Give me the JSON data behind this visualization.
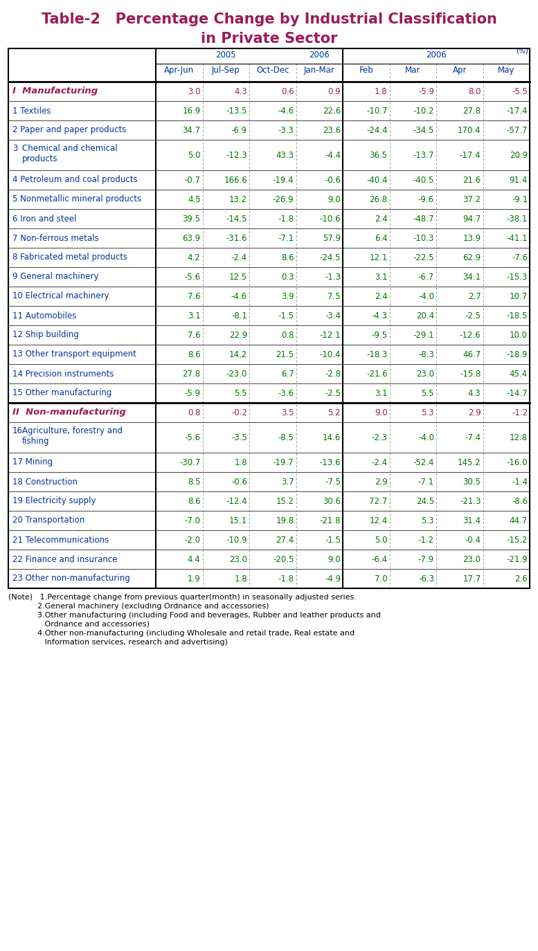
{
  "title_line1": "Table-2   Percentage Change by Industrial Classification",
  "title_line2": "in Private Sector",
  "title_color": "#9B1B5A",
  "percent_label": "(%)",
  "col_headers_year": [
    "",
    "2005",
    "",
    "",
    "2006",
    "2006",
    "",
    "",
    ""
  ],
  "col_headers_period": [
    "",
    "Apr-Jun",
    "Jul-Sep",
    "Oct-Dec",
    "Jan-Mar",
    "Feb",
    "Mar",
    "Apr",
    "May"
  ],
  "rows": [
    {
      "label": "I  Manufacturing",
      "bold": true,
      "category": true,
      "values": [
        3.0,
        4.3,
        0.6,
        0.9,
        1.8,
        -5.9,
        8.0,
        -5.5
      ],
      "label_color": "#9B1B5A",
      "val_color": "#9B1B5A"
    },
    {
      "label": "1 Textiles",
      "bold": false,
      "category": false,
      "values": [
        16.9,
        -13.5,
        -4.6,
        22.6,
        -10.7,
        -10.2,
        27.8,
        -17.4
      ],
      "label_color": "#003399",
      "val_color": "#007700"
    },
    {
      "label": "2 Paper and paper products",
      "bold": false,
      "category": false,
      "values": [
        34.7,
        -6.9,
        -3.3,
        23.6,
        -24.4,
        -34.5,
        170.4,
        -57.7
      ],
      "label_color": "#003399",
      "val_color": "#007700"
    },
    {
      "label": "3 Chemical and chemical\nproducts",
      "bold": false,
      "category": false,
      "values": [
        5.0,
        -12.3,
        43.3,
        -4.4,
        36.5,
        -13.7,
        -17.4,
        20.9
      ],
      "label_color": "#003399",
      "val_color": "#007700"
    },
    {
      "label": "4 Petroleum and coal products",
      "bold": false,
      "category": false,
      "values": [
        -0.7,
        166.6,
        -19.4,
        -0.6,
        -40.4,
        -40.5,
        21.6,
        91.4
      ],
      "label_color": "#003399",
      "val_color": "#007700"
    },
    {
      "label": "5 Nonmetallic mineral products",
      "bold": false,
      "category": false,
      "values": [
        4.5,
        13.2,
        -26.9,
        9.0,
        26.8,
        -9.6,
        37.2,
        -9.1
      ],
      "label_color": "#003399",
      "val_color": "#007700"
    },
    {
      "label": "6 Iron and steel",
      "bold": false,
      "category": false,
      "values": [
        39.5,
        -14.5,
        -1.8,
        -10.6,
        2.4,
        -48.7,
        94.7,
        -38.1
      ],
      "label_color": "#003399",
      "val_color": "#007700"
    },
    {
      "label": "7 Non-ferrous metals",
      "bold": false,
      "category": false,
      "values": [
        63.9,
        -31.6,
        -7.1,
        57.9,
        6.4,
        -10.3,
        13.9,
        -41.1
      ],
      "label_color": "#003399",
      "val_color": "#007700"
    },
    {
      "label": "8 Fabricated metal products",
      "bold": false,
      "category": false,
      "values": [
        4.2,
        -2.4,
        8.6,
        -24.5,
        12.1,
        -22.5,
        62.9,
        -7.6
      ],
      "label_color": "#003399",
      "val_color": "#007700"
    },
    {
      "label": "9 General machinery",
      "bold": false,
      "category": false,
      "values": [
        -5.6,
        12.5,
        0.3,
        -1.3,
        3.1,
        -6.7,
        34.1,
        -15.3
      ],
      "label_color": "#003399",
      "val_color": "#007700"
    },
    {
      "label": "10 Electrical machinery",
      "bold": false,
      "category": false,
      "values": [
        7.6,
        -4.6,
        3.9,
        7.5,
        2.4,
        -4.0,
        2.7,
        10.7
      ],
      "label_color": "#003399",
      "val_color": "#007700"
    },
    {
      "label": "11 Automobiles",
      "bold": false,
      "category": false,
      "values": [
        3.1,
        -8.1,
        -1.5,
        -3.4,
        -4.3,
        20.4,
        -2.5,
        -18.5
      ],
      "label_color": "#003399",
      "val_color": "#007700"
    },
    {
      "label": "12 Ship building",
      "bold": false,
      "category": false,
      "values": [
        7.6,
        22.9,
        0.8,
        -12.1,
        -9.5,
        -29.1,
        -12.6,
        10.0
      ],
      "label_color": "#003399",
      "val_color": "#007700"
    },
    {
      "label": "13 Other transport equipment",
      "bold": false,
      "category": false,
      "values": [
        8.6,
        14.2,
        21.5,
        -10.4,
        -18.3,
        -8.3,
        46.7,
        -18.9
      ],
      "label_color": "#003399",
      "val_color": "#007700"
    },
    {
      "label": "14 Precision instruments",
      "bold": false,
      "category": false,
      "values": [
        27.8,
        -23.0,
        6.7,
        -2.8,
        -21.6,
        23.0,
        -15.8,
        45.4
      ],
      "label_color": "#003399",
      "val_color": "#007700"
    },
    {
      "label": "15 Other manufacturing",
      "bold": false,
      "category": false,
      "values": [
        -5.9,
        5.5,
        -3.6,
        -2.5,
        3.1,
        5.5,
        4.3,
        -14.7
      ],
      "label_color": "#003399",
      "val_color": "#007700"
    },
    {
      "label": "II  Non-manufacturing",
      "bold": true,
      "category": true,
      "values": [
        0.8,
        -0.2,
        3.5,
        5.2,
        9.0,
        5.3,
        2.9,
        -1.2
      ],
      "label_color": "#9B1B5A",
      "val_color": "#9B1B5A"
    },
    {
      "label": "16 Agriculture, forestry and\nfishing",
      "bold": false,
      "category": false,
      "values": [
        -5.6,
        -3.5,
        -8.5,
        14.6,
        -2.3,
        -4.0,
        -7.4,
        12.8
      ],
      "label_color": "#003399",
      "val_color": "#007700"
    },
    {
      "label": "17 Mining",
      "bold": false,
      "category": false,
      "values": [
        -30.7,
        1.8,
        -19.7,
        -13.6,
        -2.4,
        -52.4,
        145.2,
        -16.0
      ],
      "label_color": "#003399",
      "val_color": "#007700"
    },
    {
      "label": "18 Construction",
      "bold": false,
      "category": false,
      "values": [
        8.5,
        -0.6,
        3.7,
        -7.5,
        2.9,
        -7.1,
        30.5,
        -1.4
      ],
      "label_color": "#003399",
      "val_color": "#007700"
    },
    {
      "label": "19 Electricity supply",
      "bold": false,
      "category": false,
      "values": [
        8.6,
        -12.4,
        15.2,
        30.6,
        72.7,
        24.5,
        -21.3,
        -8.6
      ],
      "label_color": "#003399",
      "val_color": "#007700"
    },
    {
      "label": "20 Transportation",
      "bold": false,
      "category": false,
      "values": [
        -7.0,
        15.1,
        19.8,
        -21.8,
        12.4,
        5.3,
        31.4,
        44.7
      ],
      "label_color": "#003399",
      "val_color": "#007700"
    },
    {
      "label": "21 Telecommunications",
      "bold": false,
      "category": false,
      "values": [
        -2.0,
        -10.9,
        27.4,
        -1.5,
        5.0,
        -1.2,
        -0.4,
        -15.2
      ],
      "label_color": "#003399",
      "val_color": "#007700"
    },
    {
      "label": "22 Finance and insurance",
      "bold": false,
      "category": false,
      "values": [
        4.4,
        23.0,
        -20.5,
        9.0,
        -6.4,
        -7.9,
        23.0,
        -21.9
      ],
      "label_color": "#003399",
      "val_color": "#007700"
    },
    {
      "label": "23 Other non-manufacturing",
      "bold": false,
      "category": false,
      "values": [
        1.9,
        1.8,
        -1.8,
        -4.9,
        7.0,
        -6.3,
        17.7,
        2.6
      ],
      "label_color": "#003399",
      "val_color": "#007700"
    }
  ],
  "notes": [
    [
      "(Note)   1.Percentage change from previous quarter(month) in seasonally adjusted series.",
      12
    ],
    [
      "            2.General machinery (excluding Ordnance and accessories)",
      12
    ],
    [
      "            3.Other manufacturing (including Food and beverages, Rubber and leather products and",
      12
    ],
    [
      "               Ordnance and accessories)",
      12
    ],
    [
      "            4.Other non-manufacturing (including Wholesale and retail trade, Real estate and",
      12
    ],
    [
      "               Information services, research and advertising)",
      12
    ]
  ],
  "bg_color": "#ffffff",
  "table_header_color": "#003399",
  "title_fontsize": 15,
  "header_fontsize": 8.5,
  "data_fontsize": 8.5,
  "label_fontsize": 8.5,
  "note_fontsize": 8.0
}
